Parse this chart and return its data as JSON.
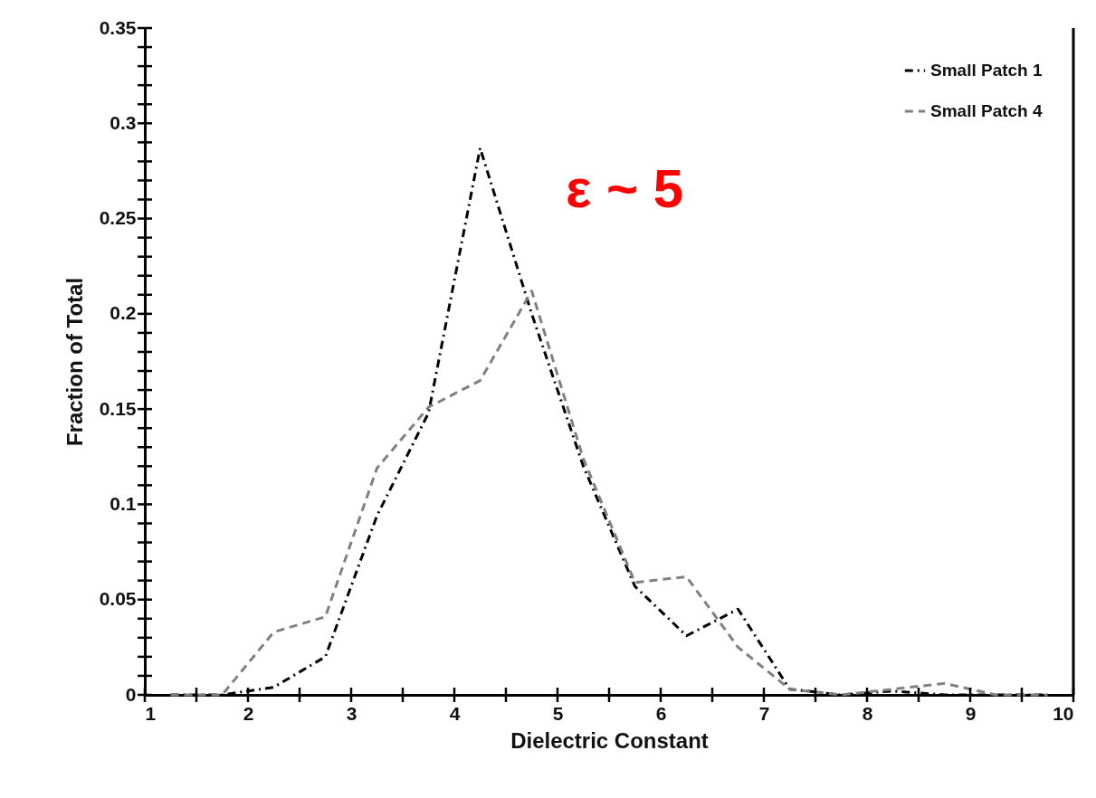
{
  "chart_data": {
    "type": "line",
    "xlabel": "Dielectric Constant",
    "ylabel": "Fraction of Total",
    "annotations": [
      "ε ~ 5"
    ],
    "x": [
      1.25,
      1.75,
      2.25,
      2.75,
      3.25,
      3.75,
      4.25,
      4.75,
      5.25,
      5.75,
      6.25,
      6.75,
      7.25,
      7.75,
      8.25,
      8.75,
      9.25,
      9.75
    ],
    "series": [
      {
        "name": "Small Patch 1",
        "color": "#000000",
        "line_style": "dotted",
        "values": [
          0,
          0,
          0.004,
          0.02,
          0.094,
          0.148,
          0.287,
          0.2,
          0.12,
          0.057,
          0.031,
          0.045,
          0.003,
          0,
          0.002,
          0,
          0,
          0
        ]
      },
      {
        "name": "Small Patch 4",
        "color": "#808080",
        "line_style": "dashed",
        "values": [
          0,
          0,
          0.033,
          0.041,
          0.119,
          0.151,
          0.165,
          0.212,
          0.124,
          0.059,
          0.062,
          0.025,
          0.003,
          0,
          0.003,
          0.006,
          0,
          0
        ]
      }
    ],
    "xlim": [
      1,
      10
    ],
    "xticks": [
      1,
      {
        "value": 1.5,
        "label": null
      },
      2,
      {
        "value": 2.5,
        "label": null
      },
      3,
      {
        "value": 3.5,
        "label": null
      },
      4,
      {
        "value": 4.5,
        "label": null
      },
      5,
      {
        "value": 5.5,
        "label": null
      },
      6,
      {
        "value": 6.5,
        "label": null
      },
      7,
      {
        "value": 7.5,
        "label": null
      },
      8,
      {
        "value": 8.5,
        "label": null
      },
      9,
      {
        "value": 9.5,
        "label": null
      },
      10
    ],
    "ylim": [
      0,
      0.35
    ],
    "yticks": [
      0,
      {
        "value": 0.01,
        "label": null
      },
      {
        "value": 0.02,
        "label": null
      },
      {
        "value": 0.03,
        "label": null
      },
      {
        "value": 0.04,
        "label": null
      },
      0.05,
      {
        "value": 0.06,
        "label": null
      },
      {
        "value": 0.07,
        "label": null
      },
      {
        "value": 0.08,
        "label": null
      },
      {
        "value": 0.09,
        "label": null
      },
      0.1,
      {
        "value": 0.11,
        "label": null
      },
      {
        "value": 0.12,
        "label": null
      },
      {
        "value": 0.13,
        "label": null
      },
      {
        "value": 0.14,
        "label": null
      },
      0.15,
      {
        "value": 0.16,
        "label": null
      },
      {
        "value": 0.17,
        "label": null
      },
      {
        "value": 0.18,
        "label": null
      },
      {
        "value": 0.19,
        "label": null
      },
      0.2,
      {
        "value": 0.21,
        "label": null
      },
      {
        "value": 0.22,
        "label": null
      },
      {
        "value": 0.23,
        "label": null
      },
      {
        "value": 0.24,
        "label": null
      },
      0.25,
      {
        "value": 0.26,
        "label": null
      },
      {
        "value": 0.27,
        "label": null
      },
      {
        "value": 0.28,
        "label": null
      },
      {
        "value": 0.29,
        "label": null
      },
      0.3,
      {
        "value": 0.31,
        "label": null
      },
      {
        "value": 0.32,
        "label": null
      },
      {
        "value": 0.33,
        "label": null
      },
      {
        "value": 0.34,
        "label": null
      },
      0.35
    ],
    "grid": false,
    "legend": "top right"
  }
}
